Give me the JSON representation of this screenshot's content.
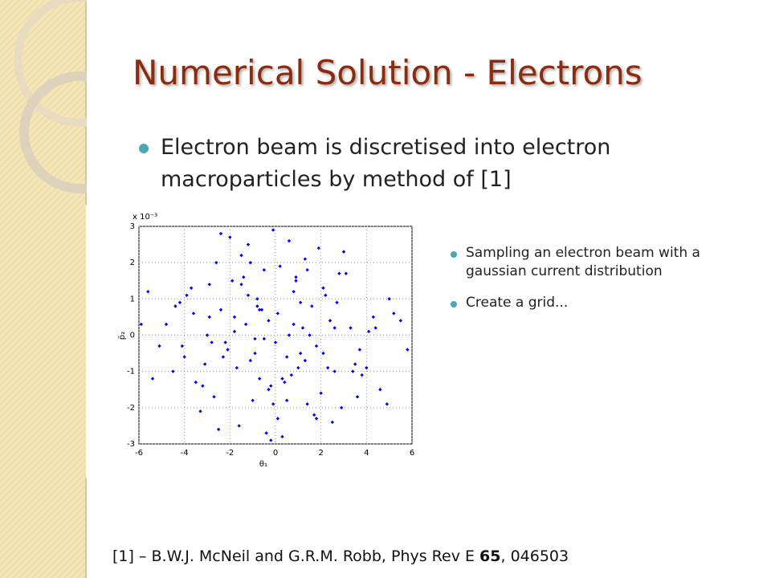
{
  "title": "Numerical Solution - Electrons",
  "bullets": [
    "Electron beam is discretised into electron macroparticles by method of [1]"
  ],
  "sub_bullets": [
    "Sampling an electron beam with a gaussian current distribution",
    "Create a grid..."
  ],
  "footnote": {
    "prefix": "[1] – B.W.J. McNeil and G.R.M. Robb,  Phys Rev E ",
    "volume": "65",
    "suffix": ", 046503"
  },
  "chart_data": {
    "type": "scatter",
    "color": "#0000ff",
    "grid": true,
    "x_label": "θ₁",
    "y_label": "p̄₂",
    "y_multiplier": "x 10⁻³",
    "xlim": [
      -6,
      6
    ],
    "ylim": [
      -3,
      3
    ],
    "xticks": [
      -6,
      -4,
      -2,
      0,
      2,
      4,
      6
    ],
    "yticks": [
      -3,
      -2,
      -1,
      0,
      1,
      2,
      3
    ],
    "x": [
      -0.3,
      0.5,
      -1.2,
      1.8,
      -2.4,
      0.9,
      -0.7,
      2.6,
      -3.1,
      1.3,
      0.1,
      -1.8,
      3.4,
      -0.9,
      2.1,
      -2.7,
      0.6,
      -4.2,
      1.1,
      -0.2,
      4.1,
      -1.5,
      2.9,
      -3.6,
      0.3,
      1.6,
      -2.1,
      -0.5,
      3.8,
      -1.1,
      0.8,
      -3.3,
      2.3,
      -0.1,
      -4.8,
      1.4,
      5.2,
      -2.9,
      0.0,
      -1.6,
      2.7,
      -0.8,
      4.6,
      -2.3,
      1.9,
      -5.1,
      0.4,
      -1.3,
      3.1,
      -3.9,
      1.0,
      -0.4,
      2.4,
      -2.6,
      5.8,
      -0.6,
      1.7,
      -4.5,
      3.5,
      -1.9,
      0.2,
      -3.0,
      2.0,
      -1.0,
      4.3,
      -5.6,
      1.2,
      -2.2,
      0.7,
      3.0,
      -0.3,
      -1.4,
      2.5,
      -3.5,
      5.0,
      -0.9,
      1.5,
      -2.0,
      0.1,
      -4.0,
      3.3,
      -1.7,
      0.9,
      -2.5,
      4.9,
      -5.4,
      2.2,
      -0.2,
      1.3,
      -3.7,
      0.5,
      -1.2,
      3.7,
      -2.8,
      0.6,
      5.5,
      -4.4,
      1.8,
      -0.7,
      2.8,
      -1.5,
      -3.2,
      0.3,
      4.0,
      -2.4,
      1.1,
      -0.5,
      -5.9,
      2.6,
      -1.8,
      0.8,
      3.6,
      -0.1,
      -2.9,
      1.4,
      -4.1,
      2.1,
      -1.1,
      4.4,
      -0.8
    ],
    "y": [
      0.4,
      -0.6,
      1.1,
      -0.3,
      0.7,
      1.6,
      -1.2,
      0.2,
      -0.8,
      2.1,
      -2.3,
      0.5,
      -1.0,
      -0.1,
      1.3,
      -1.7,
      2.6,
      0.9,
      -0.5,
      -1.4,
      0.1,
      2.2,
      -2.0,
      0.6,
      -2.8,
      0.8,
      -0.4,
      1.8,
      -1.1,
      -0.7,
      1.2,
      -2.1,
      -0.9,
      2.9,
      0.3,
      -1.9,
      0.6,
      1.4,
      -0.2,
      -2.5,
      0.9,
      1.0,
      -1.5,
      -0.6,
      2.4,
      -0.3,
      -1.3,
      0.3,
      1.7,
      1.1,
      -0.9,
      -2.7,
      0.4,
      2.0,
      -0.4,
      0.7,
      -2.2,
      -1.0,
      -0.8,
      1.5,
      1.9,
      0.0,
      -1.6,
      -1.8,
      0.5,
      1.2,
      0.2,
      -0.2,
      -1.1,
      2.3,
      -1.5,
      1.6,
      -2.4,
      -1.3,
      1.0,
      -0.5,
      0.0,
      2.7,
      0.6,
      -0.6,
      0.2,
      -0.9,
      1.5,
      -2.6,
      -1.9,
      -1.2,
      1.1,
      -2.9,
      -0.7,
      1.3,
      -1.8,
      2.5,
      -0.4,
      -0.2,
      0.0,
      0.4,
      0.8,
      -2.3,
      0.7,
      1.7,
      1.4,
      -1.4,
      -1.2,
      -0.9,
      2.8,
      0.9,
      -0.1,
      0.3,
      -1.0,
      0.1,
      0.3,
      -1.7,
      -1.9,
      0.5,
      1.8,
      -0.3,
      -0.5,
      2.0,
      0.2,
      0.8
    ]
  }
}
